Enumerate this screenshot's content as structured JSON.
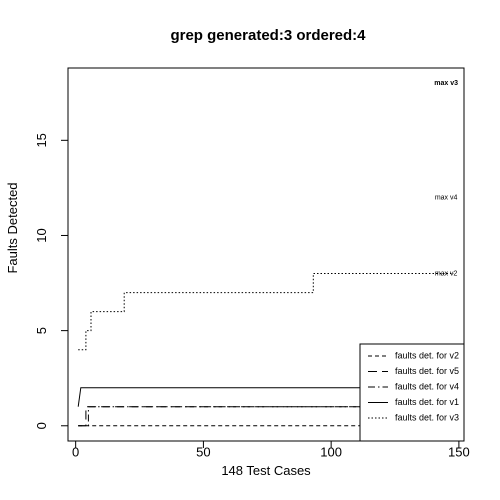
{
  "chart_data": {
    "type": "line",
    "title": "grep generated:3 ordered:4",
    "xlabel": "148 Test Cases",
    "ylabel": "Faults Detected",
    "xlim": [
      -3,
      152
    ],
    "ylim": [
      -0.8,
      18.8
    ],
    "xticks": [
      0,
      50,
      100,
      150
    ],
    "yticks": [
      0,
      5,
      10,
      15
    ],
    "series": [
      {
        "name": "faults det. for v2",
        "dash": "4,3",
        "points": [
          [
            1,
            0
          ],
          [
            148,
            0
          ]
        ]
      },
      {
        "name": "faults det. for v5",
        "dash": "9,5",
        "points": [
          [
            1,
            0
          ],
          [
            4,
            0
          ],
          [
            4,
            1
          ],
          [
            148,
            1
          ]
        ]
      },
      {
        "name": "faults det. for v4",
        "dash": "7,3,1.5,3",
        "points": [
          [
            1,
            0
          ],
          [
            5,
            0
          ],
          [
            5,
            1
          ],
          [
            148,
            1
          ]
        ]
      },
      {
        "name": "faults det. for v1",
        "dash": "",
        "points": [
          [
            1,
            1
          ],
          [
            2,
            2
          ],
          [
            148,
            2
          ]
        ]
      },
      {
        "name": "faults det. for v3",
        "dash": "1.5,2",
        "points": [
          [
            1,
            4
          ],
          [
            4,
            4
          ],
          [
            4,
            5
          ],
          [
            6,
            5
          ],
          [
            6,
            6
          ],
          [
            13,
            6
          ],
          [
            13,
            6
          ],
          [
            19,
            6
          ],
          [
            19,
            7
          ],
          [
            93,
            7
          ],
          [
            93,
            8
          ],
          [
            148,
            8
          ]
        ]
      }
    ],
    "annotations": [
      {
        "text": "max v3",
        "x": 145,
        "y": 18,
        "bold": true
      },
      {
        "text": "max v4",
        "x": 145,
        "y": 12,
        "bold": false
      },
      {
        "text": "max v2",
        "x": 145,
        "y": 8,
        "bold": false
      }
    ],
    "legend_position": "bottom-right"
  }
}
